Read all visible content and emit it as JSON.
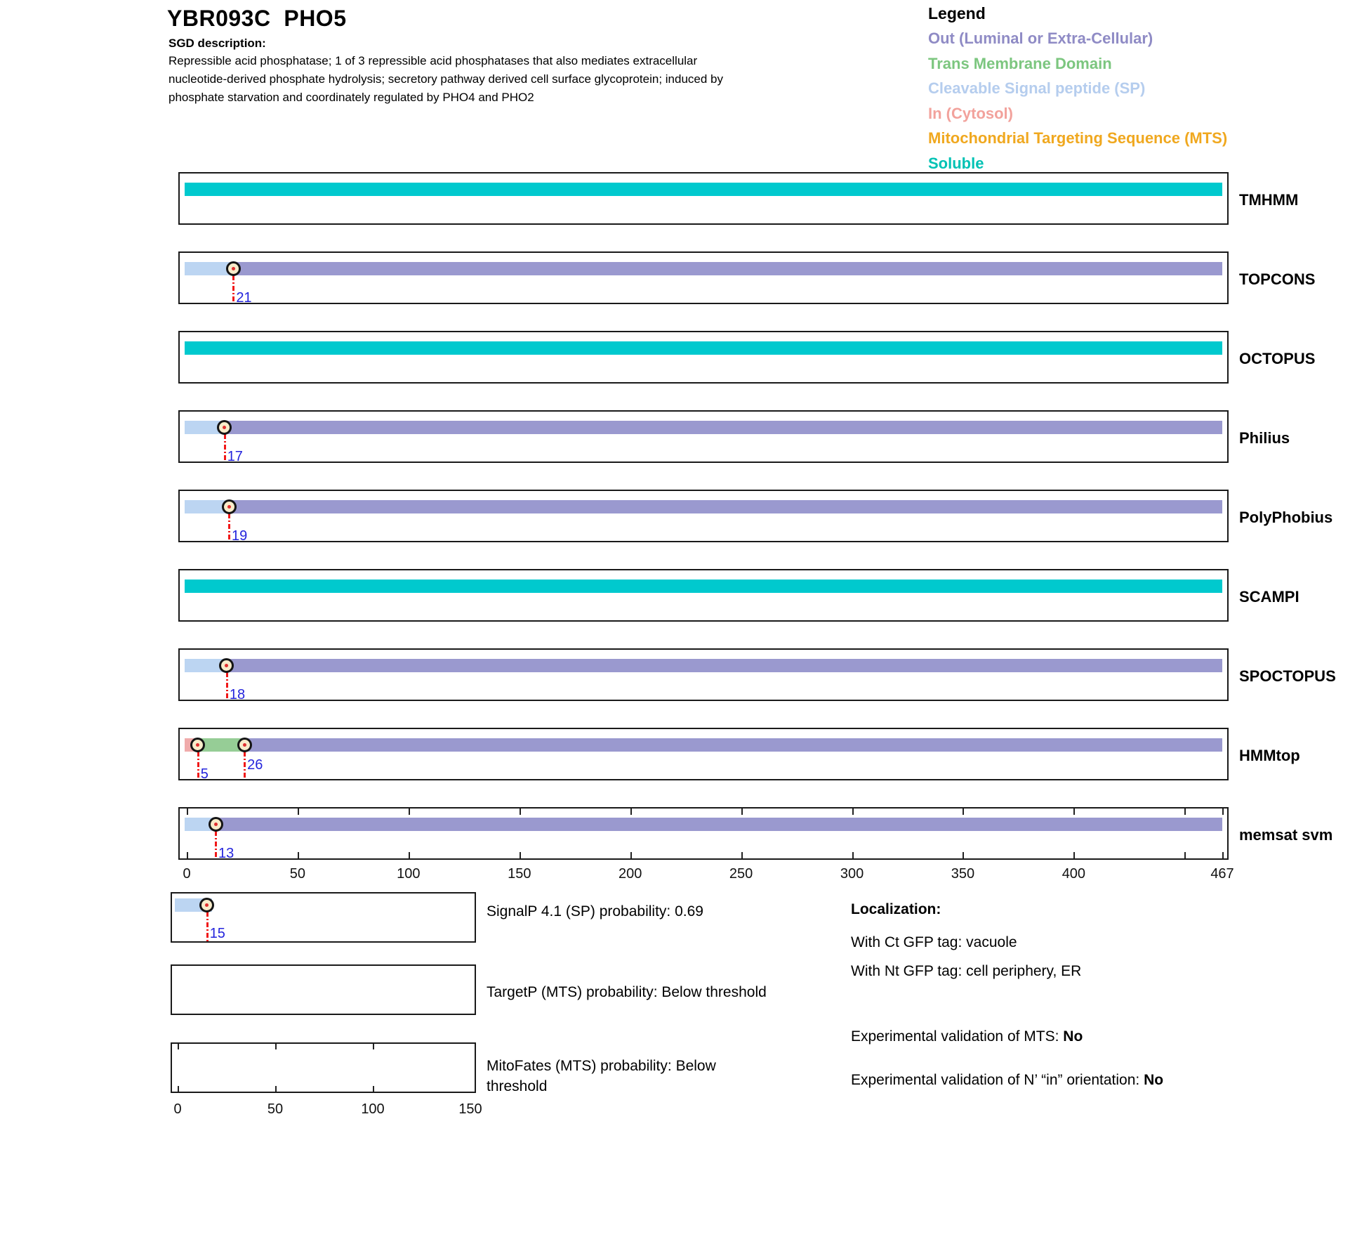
{
  "header": {
    "title": "YBR093C  PHO5",
    "sgd_label": "SGD description:",
    "description": "Repressible acid phosphatase; 1 of 3 repressible acid phosphatases that also mediates extracellular nucleotide-derived phosphate hydrolysis; secretory pathway derived cell surface glycoprotein; induced by phosphate starvation and coordinately regulated by PHO4 and PHO2"
  },
  "legend": {
    "title": "Legend",
    "items": [
      {
        "slug": "out",
        "label": "Out (Luminal or Extra-Cellular)",
        "color": "#8f8bc5"
      },
      {
        "slug": "tm",
        "label": "Trans Membrane Domain",
        "color": "#7cc67f"
      },
      {
        "slug": "sp",
        "label": "Cleavable Signal peptide (SP)",
        "color": "#b5cdee"
      },
      {
        "slug": "in",
        "label": "In (Cytosol)",
        "color": "#f2a29c"
      },
      {
        "slug": "mts",
        "label": "Mitochondrial Targeting Sequence (MTS)",
        "color": "#f0a81f"
      },
      {
        "slug": "soluble",
        "label": "Soluble",
        "color": "#00c2b4"
      }
    ]
  },
  "colors": {
    "segment": {
      "out": "#9a99cf",
      "tm": "#96cd96",
      "sp": "#bcd5f2",
      "in": "#f0abab",
      "mts": "#f0a81f",
      "soluble": "#00c9ce"
    },
    "marker_fill": "#f8ecca",
    "marker_ring": "#151515",
    "marker_dot": "#e03030",
    "marker_line": "#f01818",
    "position_label": "#2424dc",
    "box_border": "#1a1a1a",
    "axis_text": "#111111"
  },
  "chart_data": {
    "type": "topology-tracks",
    "title": "YBR093C PHO5 membrane topology predictions",
    "sequence_length": 467,
    "main_axis": {
      "xlim": [
        0,
        467
      ],
      "ticks": [
        0,
        50,
        100,
        150,
        200,
        250,
        300,
        350,
        400,
        467
      ]
    },
    "tracks": [
      {
        "name": "TMHMM",
        "segments": [
          {
            "start": 0,
            "end": 467,
            "type": "soluble"
          }
        ],
        "markers": []
      },
      {
        "name": "TOPCONS",
        "segments": [
          {
            "start": 0,
            "end": 21,
            "type": "sp"
          },
          {
            "start": 21,
            "end": 467,
            "type": "out"
          }
        ],
        "markers": [
          {
            "pos": 21,
            "label": "21"
          }
        ]
      },
      {
        "name": "OCTOPUS",
        "segments": [
          {
            "start": 0,
            "end": 467,
            "type": "soluble"
          }
        ],
        "markers": []
      },
      {
        "name": "Philius",
        "segments": [
          {
            "start": 0,
            "end": 17,
            "type": "sp"
          },
          {
            "start": 17,
            "end": 467,
            "type": "out"
          }
        ],
        "markers": [
          {
            "pos": 17,
            "label": "17"
          }
        ]
      },
      {
        "name": "PolyPhobius",
        "segments": [
          {
            "start": 0,
            "end": 19,
            "type": "sp"
          },
          {
            "start": 19,
            "end": 467,
            "type": "out"
          }
        ],
        "markers": [
          {
            "pos": 19,
            "label": "19"
          }
        ]
      },
      {
        "name": "SCAMPI",
        "segments": [
          {
            "start": 0,
            "end": 467,
            "type": "soluble"
          }
        ],
        "markers": []
      },
      {
        "name": "SPOCTOPUS",
        "segments": [
          {
            "start": 0,
            "end": 18,
            "type": "sp"
          },
          {
            "start": 18,
            "end": 467,
            "type": "out"
          }
        ],
        "markers": [
          {
            "pos": 18,
            "label": "18"
          }
        ]
      },
      {
        "name": "HMMtop",
        "segments": [
          {
            "start": 0,
            "end": 5,
            "type": "in"
          },
          {
            "start": 5,
            "end": 26,
            "type": "tm"
          },
          {
            "start": 26,
            "end": 467,
            "type": "out"
          }
        ],
        "markers": [
          {
            "pos": 5,
            "label": "5"
          },
          {
            "pos": 26,
            "label": "26",
            "raised": true
          }
        ]
      },
      {
        "name": "memsat svm",
        "segments": [
          {
            "start": 0,
            "end": 13,
            "type": "sp"
          },
          {
            "start": 13,
            "end": 467,
            "type": "out"
          }
        ],
        "markers": [
          {
            "pos": 13,
            "label": "13"
          }
        ],
        "inner_ticks": [
          0,
          50,
          100,
          150,
          200,
          250,
          300,
          350,
          400,
          450,
          467
        ]
      }
    ],
    "sub_axis": {
      "xlim": [
        0,
        150
      ],
      "ticks": [
        0,
        50,
        100,
        150
      ]
    },
    "sub_charts": [
      {
        "name": "SignalP",
        "label": "SignalP 4.1 (SP) probability: 0.69",
        "segments": [
          {
            "start": 0,
            "end": 15,
            "type": "sp"
          }
        ],
        "markers": [
          {
            "pos": 15,
            "label": "15"
          }
        ]
      },
      {
        "name": "TargetP",
        "label": "TargetP (MTS) probability: Below threshold",
        "segments": [],
        "markers": []
      },
      {
        "name": "MitoFates",
        "label": "MitoFates (MTS) probability: Below threshold",
        "segments": [],
        "markers": [],
        "inner_ticks": [
          0,
          50,
          100
        ]
      }
    ]
  },
  "localization": {
    "title": "Localization:",
    "ct_line": "With Ct GFP tag: vacuole",
    "nt_line": "With Nt GFP tag: cell periphery, ER",
    "mts_label": "Experimental validation of MTS: ",
    "mts_value": "No",
    "nin_label": "Experimental validation of N’ “in” orientation: ",
    "nin_value": "No"
  }
}
